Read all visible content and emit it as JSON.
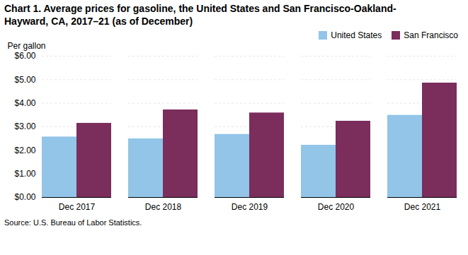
{
  "chart_data": {
    "type": "bar",
    "title": "Chart 1. Average prices for gasoline, the United States and San Francisco-Oakland-\nHayward, CA, 2017–21 (as of December)",
    "ylabel": "Per gallon",
    "caption": "Source: U.S. Bureau of Labor Statistics.",
    "categories": [
      "Dec 2017",
      "Dec 2018",
      "Dec 2019",
      "Dec 2020",
      "Dec 2021"
    ],
    "series": [
      {
        "name": "United States",
        "color": "#92c5e8",
        "values": [
          2.57,
          2.49,
          2.68,
          2.22,
          3.49
        ]
      },
      {
        "name": "San Francisco",
        "color": "#7b2d5c",
        "values": [
          3.15,
          3.72,
          3.59,
          3.24,
          4.86
        ]
      }
    ],
    "ylim": [
      0,
      6.0
    ],
    "yticks": [
      {
        "value": 0.0,
        "label": "$0.00"
      },
      {
        "value": 1.0,
        "label": "$1.00"
      },
      {
        "value": 2.0,
        "label": "$2.00"
      },
      {
        "value": 3.0,
        "label": "$3.00"
      },
      {
        "value": 4.0,
        "label": "$4.00"
      },
      {
        "value": 5.0,
        "label": "$5.00"
      },
      {
        "value": 6.0,
        "label": "$6.00"
      }
    ],
    "grid": true,
    "legend": "upper right"
  }
}
